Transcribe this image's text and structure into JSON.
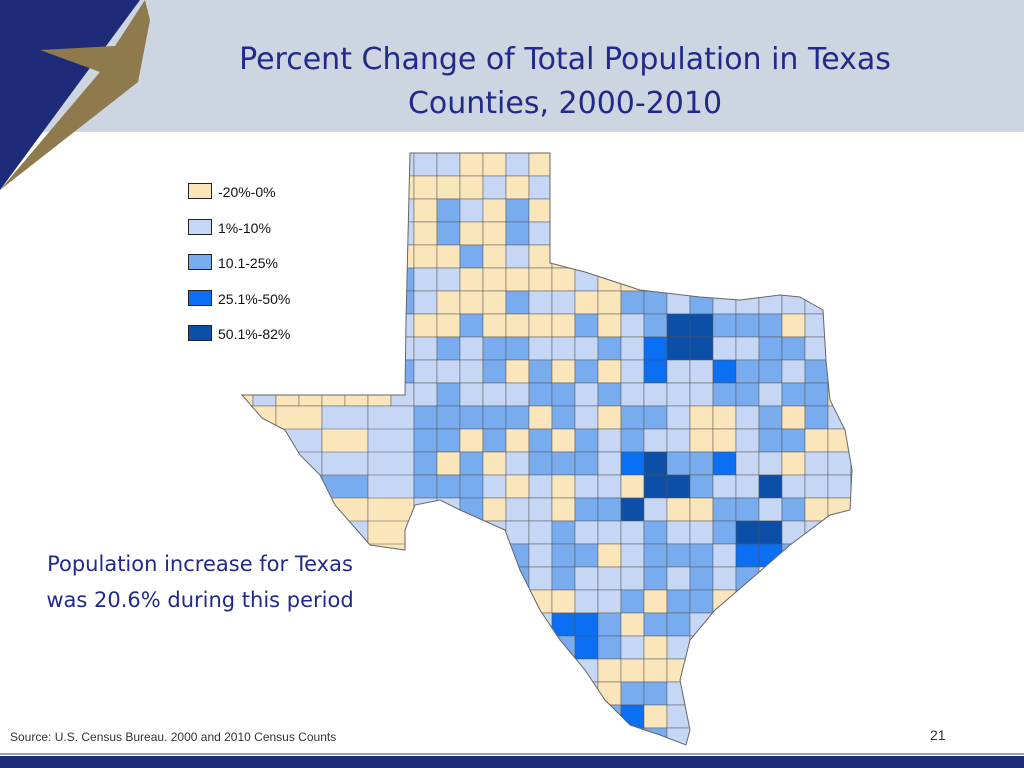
{
  "slide": {
    "title": "Percent Change of Total Population in Texas Counties, 2000-2010",
    "callout": "Population increase for Texas was 20.6% during this period",
    "source": "Source: U.S. Census Bureau. 2000 and 2010 Census Counts",
    "page_number": "21"
  },
  "legend": {
    "items": [
      {
        "label": "-20%-0%",
        "color": "#fbe6bb"
      },
      {
        "label": "1%-10%",
        "color": "#c6d7f6"
      },
      {
        "label": "10.1-25%",
        "color": "#78acef"
      },
      {
        "label": "25.1%-50%",
        "color": "#0a6ff2"
      },
      {
        "label": "50.1%-82%",
        "color": "#0b4fa8"
      }
    ]
  },
  "colors": {
    "header_band": "#cdd5e0",
    "corner_blue": "#1d2b78",
    "star_gold": "#8f7a4d",
    "title_text": "#1f2a8a",
    "footer_bar": "#1d2b78"
  }
}
